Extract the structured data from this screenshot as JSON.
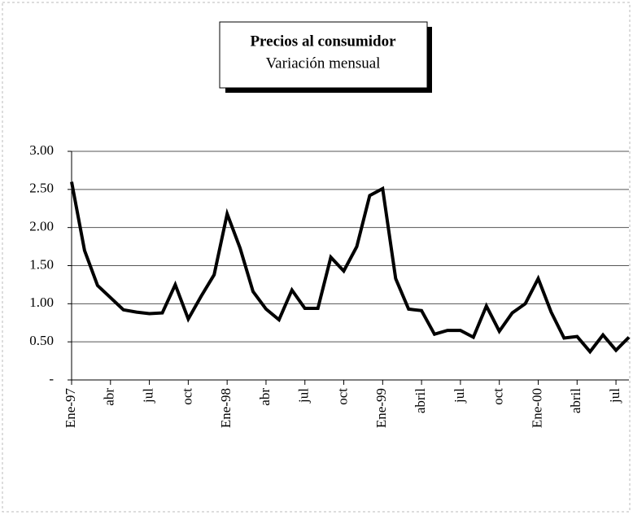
{
  "chart_data": {
    "type": "line",
    "title": "Precios al consumidor",
    "subtitle": "Variación mensual",
    "categories": [
      "Ene-97",
      null,
      null,
      "abr",
      null,
      null,
      "jul",
      null,
      null,
      "oct",
      null,
      null,
      "Ene-98",
      null,
      null,
      "abr",
      null,
      null,
      "jul",
      null,
      null,
      "oct",
      null,
      null,
      "Ene-99",
      null,
      null,
      "abril",
      null,
      null,
      "jul",
      null,
      null,
      "oct",
      null,
      null,
      "Ene-00",
      null,
      null,
      "abril",
      null,
      null,
      "jul",
      null
    ],
    "values": [
      2.6,
      1.7,
      1.24,
      1.08,
      0.92,
      0.89,
      0.87,
      0.88,
      1.25,
      0.8,
      1.1,
      1.38,
      2.18,
      1.73,
      1.16,
      0.93,
      0.79,
      1.18,
      0.94,
      0.94,
      1.61,
      1.43,
      1.75,
      2.42,
      2.51,
      1.33,
      0.93,
      0.91,
      0.6,
      0.65,
      0.65,
      0.56,
      0.97,
      0.64,
      0.88,
      1.0,
      1.33,
      0.89,
      0.55,
      0.57,
      0.37,
      0.59,
      0.39,
      0.56
    ],
    "color": "#000000",
    "ylim": [
      0,
      3
    ],
    "yticks": [
      {
        "value": 0,
        "label": "-"
      },
      {
        "value": 0.5,
        "label": "0.50"
      },
      {
        "value": 1,
        "label": "1.00"
      },
      {
        "value": 1.5,
        "label": "1.50"
      },
      {
        "value": 2,
        "label": "2.00"
      },
      {
        "value": 2.5,
        "label": "2.50"
      },
      {
        "value": 3,
        "label": "3.00"
      }
    ],
    "grid": true
  }
}
